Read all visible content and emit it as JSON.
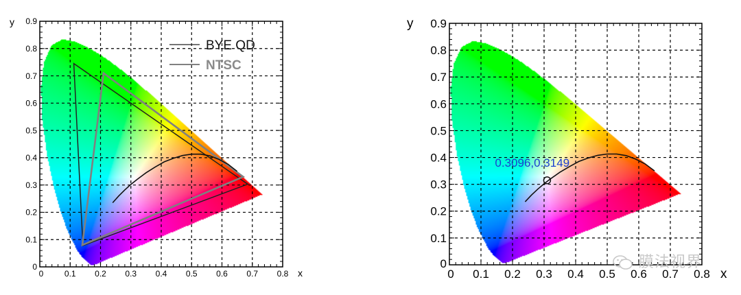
{
  "chart_data": [
    {
      "type": "scatter",
      "title": "",
      "xlabel": "x",
      "ylabel": "y",
      "xlim": [
        0,
        0.8
      ],
      "ylim": [
        0,
        0.9
      ],
      "xticks": [
        "0",
        "0.1",
        "0.2",
        "0.3",
        "0.4",
        "0.5",
        "0.6",
        "0.7",
        "0.8"
      ],
      "yticks": [
        "0",
        "0.1",
        "0.2",
        "0.3",
        "0.4",
        "0.5",
        "0.6",
        "0.7",
        "0.8",
        "0.9"
      ],
      "grid": true,
      "legend": {
        "placement": "top-right",
        "entries": [
          "BYE QD",
          "NTSC"
        ]
      },
      "series": [
        {
          "name": "BYE QD",
          "color": "#222222",
          "closed": true,
          "x": [
            0.112,
            0.685,
            0.142
          ],
          "y": [
            0.745,
            0.303,
            0.078
          ]
        },
        {
          "name": "NTSC",
          "color": "#808080",
          "closed": true,
          "x": [
            0.21,
            0.67,
            0.14
          ],
          "y": [
            0.71,
            0.33,
            0.08
          ]
        }
      ],
      "planckian": {
        "x": [
          0.24,
          0.26,
          0.28,
          0.3,
          0.32,
          0.35,
          0.38,
          0.41,
          0.44,
          0.47,
          0.5,
          0.53,
          0.56,
          0.59,
          0.62,
          0.65
        ],
        "y": [
          0.235,
          0.26,
          0.282,
          0.302,
          0.32,
          0.345,
          0.366,
          0.385,
          0.398,
          0.408,
          0.413,
          0.413,
          0.407,
          0.394,
          0.376,
          0.35
        ]
      }
    },
    {
      "type": "scatter",
      "title": "",
      "xlabel": "x",
      "ylabel": "y",
      "xlim": [
        0,
        0.8
      ],
      "ylim": [
        0,
        0.9
      ],
      "xticks": [
        "0",
        "0.1",
        "0.2",
        "0.3",
        "0.4",
        "0.5",
        "0.6",
        "0.7",
        "0.8"
      ],
      "yticks": [
        "0",
        "0.1",
        "0.2",
        "0.3",
        "0.4",
        "0.5",
        "0.6",
        "0.7",
        "0.8",
        "0.9"
      ],
      "grid": true,
      "marker": {
        "x": 0.3096,
        "y": 0.3149,
        "label": "0.3096,0.3149"
      },
      "planckian": {
        "x": [
          0.24,
          0.26,
          0.28,
          0.3,
          0.32,
          0.35,
          0.38,
          0.41,
          0.44,
          0.47,
          0.5,
          0.53,
          0.56,
          0.59,
          0.62,
          0.65
        ],
        "y": [
          0.235,
          0.26,
          0.282,
          0.302,
          0.32,
          0.345,
          0.366,
          0.385,
          0.398,
          0.408,
          0.413,
          0.413,
          0.407,
          0.394,
          0.376,
          0.35
        ]
      }
    }
  ],
  "watermark": {
    "text": "膜法视界",
    "icon": "wechat-icon"
  }
}
